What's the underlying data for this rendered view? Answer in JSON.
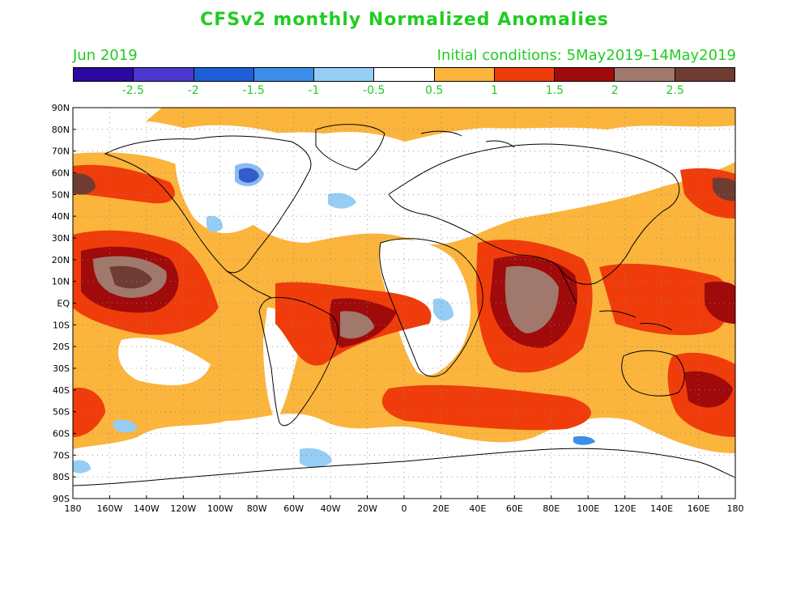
{
  "title": "CFSv2 monthly Normalized Anomalies",
  "month": "Jun 2019",
  "initial_conditions": "Initial conditions: 5May2019–14May2019",
  "colorbar": {
    "colors": [
      "#2a0aa0",
      "#4b38d0",
      "#1e5fd8",
      "#3c8fe8",
      "#96cdf5",
      "#ffffff",
      "#fbb43c",
      "#f03c0a",
      "#a00a0a",
      "#a0786c",
      "#6e3c32"
    ],
    "labels": [
      "-2.5",
      "-2",
      "-1.5",
      "-1",
      "-0.5",
      "0.5",
      "1",
      "1.5",
      "2",
      "2.5"
    ]
  },
  "lat_labels": [
    "90N",
    "80N",
    "70N",
    "60N",
    "50N",
    "40N",
    "30N",
    "20N",
    "10N",
    "EQ",
    "10S",
    "20S",
    "30S",
    "40S",
    "50S",
    "60S",
    "70S",
    "80S",
    "90S"
  ],
  "lon_labels": [
    "180",
    "160W",
    "140W",
    "120W",
    "100W",
    "80W",
    "60W",
    "40W",
    "20W",
    "0",
    "20E",
    "40E",
    "60E",
    "80E",
    "100E",
    "120E",
    "140E",
    "160E",
    "180"
  ]
}
